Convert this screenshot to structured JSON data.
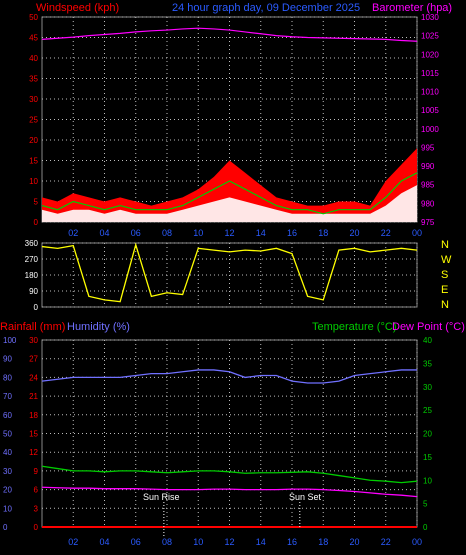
{
  "header": {
    "left_label": "Windspeed (kph)",
    "center_title": "24 hour graph day, 09 December 2025",
    "right_label": "Barometer (hpa)"
  },
  "colors": {
    "background": "#000000",
    "grid": "#bdbdbd",
    "wind_axis": "#ff0000",
    "baro_axis": "#ff00ff",
    "x_axis": "#2b5bff",
    "wind_speed_fill": "#ff0000",
    "wind_gust_area": "#ffff80",
    "wind_avg_area": "#ffffff",
    "green_line": "#00cc00",
    "barometer_line": "#ff00ff",
    "direction_line": "#ffff00",
    "compass_text": "#ffff00",
    "humidity_line": "#7070ff",
    "temperature_line": "#00cc00",
    "dewpoint_line": "#ff00ff",
    "rainfall_line": "#ff0000",
    "sun_marker": "#ffffff"
  },
  "x_ticks": [
    "02",
    "04",
    "06",
    "08",
    "10",
    "12",
    "14",
    "16",
    "18",
    "20",
    "22",
    "00"
  ],
  "compass": [
    "N",
    "W",
    "S",
    "E",
    "N"
  ],
  "bottom_labels": {
    "rainfall": "Rainfall (mm)",
    "humidity": "Humidity (%)",
    "temperature": "Temperature (°C)",
    "dewpoint": "Dew Point (°C)",
    "sunrise": "Sun Rise",
    "sunset": "Sun Set",
    "noon_label": "Sun Rise"
  },
  "chart_data": [
    {
      "type": "area",
      "name": "wind",
      "ylabel_left": "Windspeed (kph)",
      "ylabel_right": "Barometer (hpa)",
      "y_left_ticks": [
        0,
        5,
        10,
        15,
        20,
        25,
        30,
        35,
        40,
        45,
        50
      ],
      "y_left_range": [
        0,
        50
      ],
      "y_right_ticks": [
        975,
        980,
        985,
        990,
        995,
        1000,
        1005,
        1010,
        1015,
        1020,
        1025,
        1030
      ],
      "y_right_range": [
        975,
        1030
      ],
      "x_range_hours": [
        0,
        24
      ],
      "grid": true,
      "series": [
        {
          "values_hours": [
            0,
            1,
            2,
            3,
            4,
            5,
            6,
            7,
            8,
            9,
            10,
            11,
            12,
            13,
            14,
            15,
            16,
            17,
            18,
            19,
            20,
            21,
            22,
            23,
            24
          ],
          "wind_speed": [
            6,
            5,
            7,
            6,
            5,
            6,
            5,
            4,
            5,
            6,
            8,
            11,
            15,
            12,
            9,
            6,
            5,
            4,
            4,
            5,
            5,
            4,
            10,
            14,
            18
          ]
        },
        {
          "wind_avg": [
            3,
            2,
            3,
            3,
            2,
            3,
            2,
            2,
            2,
            3,
            4,
            5,
            6,
            5,
            4,
            3,
            2,
            2,
            2,
            2,
            2,
            2,
            4,
            7,
            9
          ]
        },
        {
          "green": [
            4,
            3,
            5,
            4,
            3,
            4,
            3,
            3,
            3,
            4,
            6,
            8,
            10,
            8,
            6,
            4,
            3,
            3,
            2,
            3,
            3,
            3,
            6,
            10,
            12
          ]
        },
        {
          "barometer": [
            1024,
            1024.3,
            1024.6,
            1025,
            1025.3,
            1025.6,
            1026,
            1026.3,
            1026.5,
            1026.8,
            1027,
            1026.8,
            1026.5,
            1026,
            1025.5,
            1025,
            1024.7,
            1024.5,
            1024.4,
            1024.3,
            1024.2,
            1024.1,
            1024,
            1023.7,
            1023.5
          ]
        }
      ]
    },
    {
      "type": "line",
      "name": "wind_direction",
      "y_ticks": [
        0,
        90,
        180,
        270,
        360
      ],
      "y_range": [
        0,
        360
      ],
      "x_range_hours": [
        0,
        24
      ],
      "grid": true,
      "series": [
        {
          "direction": [
            340,
            330,
            345,
            60,
            40,
            30,
            350,
            60,
            80,
            70,
            330,
            320,
            310,
            320,
            315,
            330,
            300,
            60,
            40,
            320,
            330,
            310,
            320,
            330,
            320
          ]
        }
      ]
    },
    {
      "type": "line",
      "name": "temp_humidity",
      "ylabel_left_rain": "Rainfall (mm)",
      "ylabel_left_humidity": "Humidity (%)",
      "ylabel_right_temp": "Temperature (°C)",
      "ylabel_right_dew": "Dew Point (°C)",
      "y_humidity_ticks": [
        0,
        10,
        20,
        30,
        40,
        50,
        60,
        70,
        80,
        90,
        100
      ],
      "y_humidity_range": [
        0,
        100
      ],
      "y_rain_ticks": [
        0,
        3,
        6,
        9,
        12,
        15,
        18,
        21,
        24,
        27,
        30
      ],
      "y_rain_range": [
        0,
        30
      ],
      "y_temp_ticks": [
        0,
        5,
        10,
        15,
        20,
        25,
        30,
        35,
        40
      ],
      "y_temp_range": [
        0,
        40
      ],
      "x_range_hours": [
        0,
        24
      ],
      "grid": true,
      "sunrise_hour": 7.8,
      "sunset_hour": 16.5,
      "series": [
        {
          "hours": [
            0,
            1,
            2,
            3,
            4,
            5,
            6,
            7,
            8,
            9,
            10,
            11,
            12,
            13,
            14,
            15,
            16,
            17,
            18,
            19,
            20,
            21,
            22,
            23,
            24
          ]
        },
        {
          "humidity": [
            78,
            79,
            80,
            80,
            80,
            80,
            81,
            82,
            82,
            83,
            84,
            84,
            83,
            80,
            81,
            81,
            78,
            77,
            77,
            78,
            81,
            82,
            83,
            84,
            84
          ]
        },
        {
          "temperature": [
            13,
            12.5,
            12,
            12,
            11.8,
            12,
            12,
            11.8,
            11.6,
            11.8,
            12,
            12,
            11.8,
            11.5,
            11.6,
            11.6,
            11.7,
            11.8,
            11.5,
            11,
            10.5,
            10,
            9.8,
            9.5,
            9.8
          ]
        },
        {
          "dewpoint": [
            8.5,
            8.4,
            8.3,
            8.3,
            8.2,
            8.2,
            8.2,
            8.1,
            8,
            8,
            8,
            8.1,
            8.1,
            8,
            8,
            8,
            8.1,
            8.1,
            8,
            7.8,
            7.6,
            7.3,
            7,
            6.8,
            6.5
          ]
        },
        {
          "rainfall": [
            0,
            0,
            0,
            0,
            0,
            0,
            0,
            0,
            0,
            0,
            0,
            0,
            0,
            0,
            0,
            0,
            0,
            0,
            0,
            0,
            0,
            0,
            0,
            0,
            0
          ]
        }
      ]
    }
  ]
}
